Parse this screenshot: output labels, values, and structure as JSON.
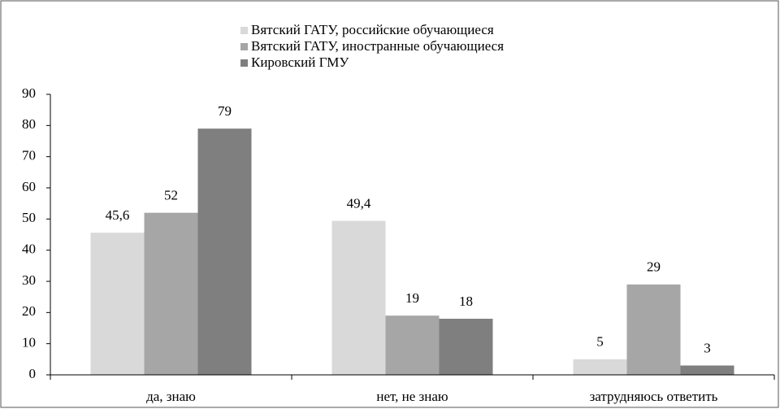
{
  "chart_data": {
    "type": "bar",
    "categories": [
      "да, знаю",
      "нет, не знаю",
      "затрудняюсь ответить"
    ],
    "series": [
      {
        "name": "Вятский ГАТУ, российские обучающиеся",
        "color": "#d9d9d9",
        "values": [
          45.6,
          49.4,
          5
        ],
        "value_labels": [
          "45,6",
          "49,4",
          "5"
        ]
      },
      {
        "name": "Вятский ГАТУ, иностранные обучающиеся",
        "color": "#a6a6a6",
        "values": [
          52,
          19,
          29
        ]
      },
      {
        "name": "Кировский ГМУ",
        "color": "#7f7f7f",
        "values": [
          79,
          18,
          3
        ]
      }
    ],
    "ylim": [
      0,
      90
    ],
    "yticks": [
      0,
      10,
      20,
      30,
      40,
      50,
      60,
      70,
      80,
      90
    ],
    "grid": false,
    "legend": "top"
  }
}
